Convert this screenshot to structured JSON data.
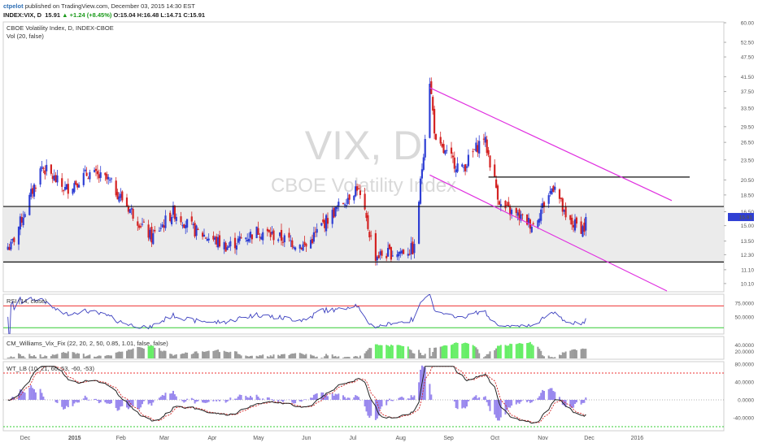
{
  "header": {
    "author": "ctpelot",
    "published": "published on TradingView.com, December 03, 2015 14:30 EST",
    "symbol": "INDEX:VIX, D",
    "last": "15.91",
    "change": "+1.24 (+8.45%)",
    "ohlc": "O:15.04 H:16.48 L:14.71 C:15.91"
  },
  "colors": {
    "up": "#2f3fd4",
    "down": "#d42424",
    "channel": "#e030e0",
    "band": "#ebebeb",
    "rsi": "#3b3fbf",
    "vixfix_high": "#66ee66",
    "vixfix_low": "#9a9a9a",
    "wt_main": "#222222",
    "wt_signal": "#d42424",
    "wt_hist": "#9988ee"
  },
  "watermark": {
    "symbol": "VIX, D",
    "name": "CBOE Volatility Index"
  },
  "chart_data": [
    {
      "type": "candlestick",
      "title": "CBOE Volatility Index, D, INDEX-CBOE",
      "subtitle": "Vol (20, false)",
      "y_ticks": [
        "60.00",
        "52.50",
        "47.50",
        "41.50",
        "37.50",
        "33.50",
        "29.50",
        "26.50",
        "23.50",
        "20.50",
        "18.50",
        "16.50",
        "15.00",
        "13.50",
        "12.30",
        "11.10",
        "10.10"
      ],
      "last_price": "15.91",
      "x_ticks": [
        "Dec",
        "2015",
        "Feb",
        "Mar",
        "Apr",
        "May",
        "Jun",
        "Jul",
        "Aug",
        "Sep",
        "Oct",
        "Nov",
        "Dec",
        "2016"
      ],
      "support_zone": [
        11.7,
        17.1
      ],
      "resistance_line": 20.9,
      "channel": "falling, from late August to early December",
      "anchors": [
        {
          "date": "2014-11-26",
          "close": 13.0
        },
        {
          "date": "2014-12-16",
          "close": 22.5
        },
        {
          "date": "2014-12-31",
          "close": 19.2
        },
        {
          "date": "2015-01-15",
          "close": 21.5
        },
        {
          "date": "2015-01-28",
          "close": 20.4
        },
        {
          "date": "2015-02-25",
          "close": 13.8
        },
        {
          "date": "2015-03-11",
          "close": 16.5
        },
        {
          "date": "2015-03-25",
          "close": 14.5
        },
        {
          "date": "2015-04-15",
          "close": 13.0
        },
        {
          "date": "2015-05-05",
          "close": 14.5
        },
        {
          "date": "2015-06-05",
          "close": 13.0
        },
        {
          "date": "2015-06-15",
          "close": 15.0
        },
        {
          "date": "2015-07-08",
          "close": 19.6
        },
        {
          "date": "2015-07-20",
          "close": 12.2
        },
        {
          "date": "2015-08-14",
          "close": 12.8
        },
        {
          "date": "2015-08-21",
          "close": 28.0
        },
        {
          "date": "2015-08-24",
          "close": 40.7
        },
        {
          "date": "2015-08-28",
          "close": 26.1
        },
        {
          "date": "2015-09-14",
          "close": 22.0
        },
        {
          "date": "2015-09-28",
          "close": 27.6
        },
        {
          "date": "2015-10-09",
          "close": 17.1
        },
        {
          "date": "2015-10-30",
          "close": 15.1
        },
        {
          "date": "2015-11-13",
          "close": 20.1
        },
        {
          "date": "2015-11-20",
          "close": 15.5
        },
        {
          "date": "2015-12-02",
          "close": 14.7
        },
        {
          "date": "2015-12-03",
          "close": 15.91
        }
      ]
    },
    {
      "type": "line",
      "title": "RSI (14, close)",
      "y_ticks": [
        "75.0000",
        "50.0000"
      ],
      "levels": [
        70,
        30
      ]
    },
    {
      "type": "histogram",
      "title": "CM_Williams_Vix_Fix (22, 20, 2, 50, 0.85, 1.01, false, false)",
      "y_ticks": [
        "40.0000",
        "20.0000"
      ]
    },
    {
      "type": "line",
      "title": "WT_LB (10, 21, 60, 53, -60, -53)",
      "y_ticks": [
        "80.0000",
        "40.0000",
        "0.0000",
        "-40.0000"
      ],
      "levels": [
        60,
        -60
      ]
    }
  ]
}
